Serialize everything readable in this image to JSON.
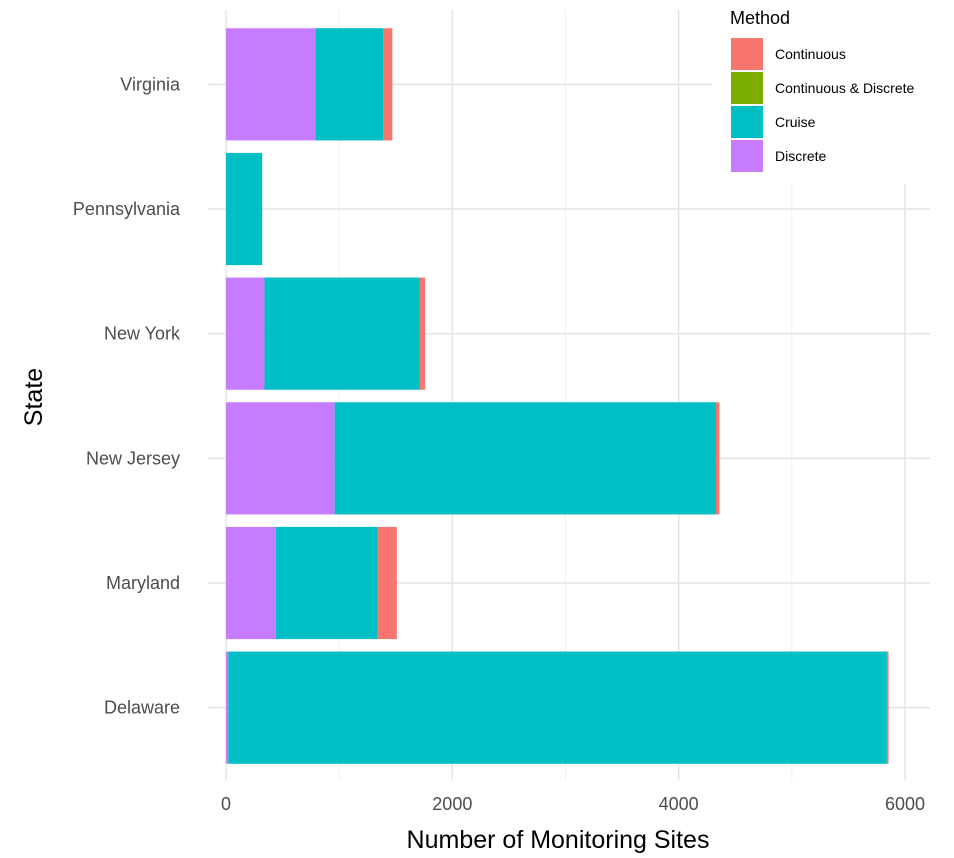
{
  "chart_data": {
    "type": "bar",
    "orientation": "horizontal",
    "stacked": true,
    "categories": [
      "Delaware",
      "Maryland",
      "New Jersey",
      "New York",
      "Pennsylvania",
      "Virginia"
    ],
    "series": [
      {
        "name": "Discrete",
        "color": "#C77CFF",
        "values": [
          20,
          440,
          960,
          340,
          0,
          790
        ]
      },
      {
        "name": "Cruise",
        "color": "#00BFC4",
        "values": [
          5820,
          900,
          3370,
          1370,
          320,
          600
        ]
      },
      {
        "name": "Continuous & Discrete",
        "color": "#7CAE00",
        "values": [
          0,
          0,
          0,
          0,
          0,
          0
        ]
      },
      {
        "name": "Continuous",
        "color": "#F8766D",
        "values": [
          15,
          170,
          30,
          50,
          0,
          80
        ]
      }
    ],
    "stack_order": [
      "Discrete",
      "Cruise",
      "Continuous & Discrete",
      "Continuous"
    ],
    "xlabel": "Number of Monitoring Sites",
    "ylabel": "State",
    "xlim": [
      0,
      6000
    ],
    "xticks": [
      0,
      2000,
      4000,
      6000
    ],
    "legend": {
      "title": "Method",
      "position": "top-right",
      "items": [
        {
          "label": "Continuous",
          "color": "#F8766D"
        },
        {
          "label": "Continuous & Discrete",
          "color": "#7CAE00"
        },
        {
          "label": "Cruise",
          "color": "#00BFC4"
        },
        {
          "label": "Discrete",
          "color": "#C77CFF"
        }
      ]
    },
    "grid": true
  }
}
